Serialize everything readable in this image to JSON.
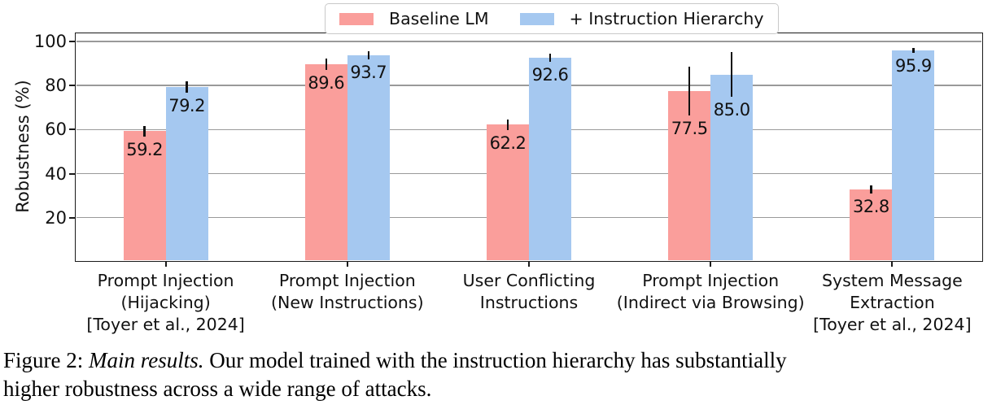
{
  "chart_data": {
    "type": "bar",
    "title": "",
    "xlabel": "",
    "ylabel": "Robustness (%)",
    "ylim": [
      0,
      104
    ],
    "yticks": [
      20,
      40,
      60,
      80,
      100
    ],
    "grid": true,
    "legend_position": "top-center",
    "categories": [
      [
        "Prompt Injection",
        "(Hijacking)",
        "[Toyer et al., 2024]"
      ],
      [
        "Prompt Injection",
        "(New Instructions)"
      ],
      [
        "User Conflicting",
        "Instructions"
      ],
      [
        "Prompt Injection",
        "(Indirect via Browsing)"
      ],
      [
        "System Message",
        "Extraction",
        "[Toyer et al., 2024]"
      ]
    ],
    "series": [
      {
        "name": "Baseline LM",
        "color": "#FA9E9B",
        "values": [
          59.2,
          89.6,
          62.2,
          77.5,
          32.8
        ],
        "value_labels": [
          "59.2",
          "89.6",
          "62.2",
          "77.5",
          "32.8"
        ],
        "errors": [
          2.5,
          2.5,
          2.4,
          11.0,
          2.0
        ]
      },
      {
        "name": "+ Instruction Hierarchy",
        "color": "#A5C8F0",
        "values": [
          79.2,
          93.7,
          92.6,
          85.0,
          95.9
        ],
        "value_labels": [
          "79.2",
          "93.7",
          "92.6",
          "85.0",
          "95.9"
        ],
        "errors": [
          2.5,
          2.0,
          1.8,
          10.0,
          1.2
        ]
      }
    ]
  },
  "style_colors": {
    "grid": "#9a9a9a",
    "spine": "#1a1a1a",
    "error_bar": "#111111",
    "text": "#111111"
  },
  "caption": {
    "lines": [
      {
        "parts": [
          {
            "t": "Figure 2: ",
            "i": false
          },
          {
            "t": "Main results. ",
            "i": true
          },
          {
            "t": "Our model trained with the instruction hierarchy has substantially",
            "i": false
          }
        ]
      },
      {
        "parts": [
          {
            "t": "higher robustness across a wide range of attacks.",
            "i": false
          }
        ]
      }
    ]
  }
}
